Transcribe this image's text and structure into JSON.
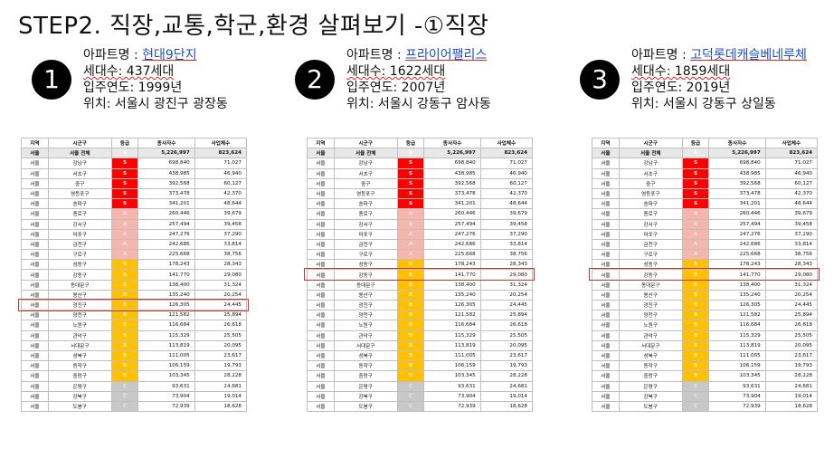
{
  "title": "STEP2. 직장,교통,학군,환경 살펴보기 -①직장",
  "apartments": [
    {
      "num": "1",
      "name_label": "아파트명 : ",
      "name": "현대9단지",
      "households": "세대수: 437세대",
      "year": "입주연도: 1999년",
      "location": "위치: 서울시 광진구 광장동",
      "highlight_row": 14
    },
    {
      "num": "2",
      "name_label": "아파트명 : ",
      "name": "프라이어팰리스",
      "households": "세대수: 1622세대",
      "year": "입주연도: 2007년",
      "location": "위치: 서울시 강동구 암사동",
      "highlight_row": 11
    },
    {
      "num": "3",
      "name_label": "아파트명 : ",
      "name": "고덕롯데캐슬베네루체",
      "households": "세대수: 1859세대",
      "year": "입주연도: 2019년",
      "location": "위치: 서울시 강동구 상일동",
      "highlight_row": 11
    }
  ],
  "table": {
    "headers": [
      "지역",
      "시군구",
      "등급",
      "종사자수",
      "사업체수"
    ],
    "rows": [
      [
        "서울",
        "서울 전체",
        "S",
        "5,226,997",
        "823,624"
      ],
      [
        "서울",
        "강남구",
        "S",
        "698,840",
        "71,027"
      ],
      [
        "서울",
        "서초구",
        "S",
        "438,985",
        "46,940"
      ],
      [
        "서울",
        "중구",
        "S",
        "392,568",
        "60,127"
      ],
      [
        "서울",
        "영등포구",
        "S",
        "373,478",
        "42,370"
      ],
      [
        "서울",
        "송파구",
        "S",
        "341,201",
        "48,644"
      ],
      [
        "서울",
        "종로구",
        "A",
        "260,446",
        "39,679"
      ],
      [
        "서울",
        "강서구",
        "A",
        "257,494",
        "39,458"
      ],
      [
        "서울",
        "마포구",
        "A",
        "247,276",
        "37,290"
      ],
      [
        "서울",
        "금천구",
        "A",
        "242,686",
        "33,814"
      ],
      [
        "서울",
        "구로구",
        "A",
        "225,668",
        "38,756"
      ],
      [
        "서울",
        "성동구",
        "B",
        "178,243",
        "28,343"
      ],
      [
        "서울",
        "강동구",
        "B",
        "141,770",
        "29,080"
      ],
      [
        "서울",
        "동대문구",
        "B",
        "138,400",
        "31,324"
      ],
      [
        "서울",
        "용산구",
        "B",
        "135,240",
        "20,254"
      ],
      [
        "서울",
        "광진구",
        "B",
        "126,305",
        "24,445"
      ],
      [
        "서울",
        "양천구",
        "B",
        "121,582",
        "25,894"
      ],
      [
        "서울",
        "노원구",
        "B",
        "116,684",
        "26,618"
      ],
      [
        "서울",
        "관악구",
        "B",
        "115,329",
        "25,505"
      ],
      [
        "서울",
        "서대문구",
        "B",
        "113,819",
        "20,095"
      ],
      [
        "서울",
        "성북구",
        "B",
        "111,005",
        "23,617"
      ],
      [
        "서울",
        "동작구",
        "B",
        "106,159",
        "19,793"
      ],
      [
        "서울",
        "중랑구",
        "B",
        "103,345",
        "28,228"
      ],
      [
        "서울",
        "은평구",
        "C",
        "93,631",
        "24,681"
      ],
      [
        "서울",
        "강북구",
        "C",
        "73,904",
        "19,014"
      ],
      [
        "서울",
        "도봉구",
        "C",
        "72,939",
        "18,628"
      ]
    ]
  },
  "colors": {
    "S": "#ff0000",
    "A": "#f4b6ad",
    "B": "#ffc000",
    "C": "#c8c8c8",
    "highlight": "#c0392b"
  }
}
